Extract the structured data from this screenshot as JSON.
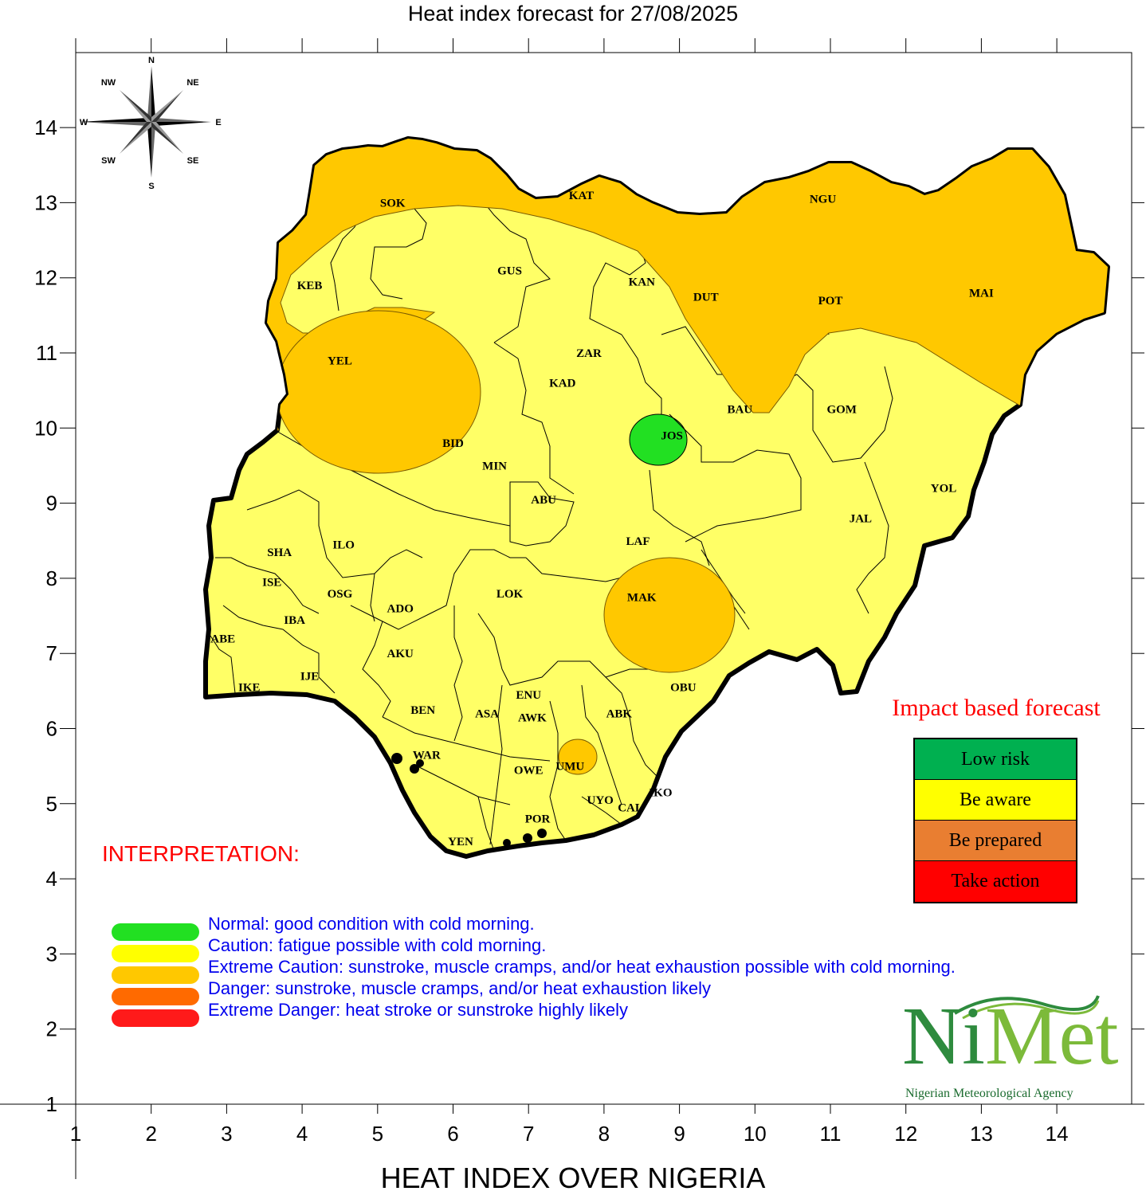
{
  "title": "Heat index forecast for 27/08/2025",
  "x_axis_title": "HEAT INDEX OVER NIGERIA",
  "axes": {
    "x_ticks": [
      "1",
      "2",
      "3",
      "4",
      "5",
      "6",
      "7",
      "8",
      "9",
      "10",
      "11",
      "12",
      "13",
      "14"
    ],
    "y_ticks": [
      "1",
      "2",
      "3",
      "4",
      "5",
      "6",
      "7",
      "8",
      "9",
      "10",
      "11",
      "12",
      "13",
      "14"
    ]
  },
  "compass": {
    "n": "N",
    "s": "S",
    "e": "E",
    "w": "W",
    "ne": "NE",
    "nw": "NW",
    "se": "SE",
    "sw": "SW"
  },
  "states": [
    {
      "code": "SOK",
      "lon": 5.2,
      "lat": 13.0
    },
    {
      "code": "KAT",
      "lon": 7.7,
      "lat": 13.1
    },
    {
      "code": "NGU",
      "lon": 10.9,
      "lat": 13.05
    },
    {
      "code": "KEB",
      "lon": 4.1,
      "lat": 11.9
    },
    {
      "code": "GUS",
      "lon": 6.75,
      "lat": 12.1
    },
    {
      "code": "KAN",
      "lon": 8.5,
      "lat": 11.95
    },
    {
      "code": "DUT",
      "lon": 9.35,
      "lat": 11.75
    },
    {
      "code": "POT",
      "lon": 11.0,
      "lat": 11.7
    },
    {
      "code": "MAI",
      "lon": 13.0,
      "lat": 11.8
    },
    {
      "code": "ZAR",
      "lon": 7.8,
      "lat": 11.0
    },
    {
      "code": "YEL",
      "lon": 4.5,
      "lat": 10.9
    },
    {
      "code": "KAD",
      "lon": 7.45,
      "lat": 10.6
    },
    {
      "code": "BAU",
      "lon": 9.8,
      "lat": 10.25
    },
    {
      "code": "GOM",
      "lon": 11.15,
      "lat": 10.25
    },
    {
      "code": "JOS",
      "lon": 8.9,
      "lat": 9.9
    },
    {
      "code": "BID",
      "lon": 6.0,
      "lat": 9.8
    },
    {
      "code": "MIN",
      "lon": 6.55,
      "lat": 9.5
    },
    {
      "code": "ABU",
      "lon": 7.2,
      "lat": 9.05
    },
    {
      "code": "YOL",
      "lon": 12.5,
      "lat": 9.2
    },
    {
      "code": "JAL",
      "lon": 11.4,
      "lat": 8.8
    },
    {
      "code": "LAF",
      "lon": 8.45,
      "lat": 8.5
    },
    {
      "code": "SHA",
      "lon": 3.7,
      "lat": 8.35
    },
    {
      "code": "ILO",
      "lon": 4.55,
      "lat": 8.45
    },
    {
      "code": "ISE",
      "lon": 3.6,
      "lat": 7.95
    },
    {
      "code": "OSG",
      "lon": 4.5,
      "lat": 7.8
    },
    {
      "code": "LOK",
      "lon": 6.75,
      "lat": 7.8
    },
    {
      "code": "MAK",
      "lon": 8.5,
      "lat": 7.75
    },
    {
      "code": "ADO",
      "lon": 5.3,
      "lat": 7.6
    },
    {
      "code": "IBA",
      "lon": 3.9,
      "lat": 7.45
    },
    {
      "code": "ABE",
      "lon": 2.95,
      "lat": 7.2
    },
    {
      "code": "AKU",
      "lon": 5.3,
      "lat": 7.0
    },
    {
      "code": "IJE",
      "lon": 4.1,
      "lat": 6.7
    },
    {
      "code": "IKE",
      "lon": 3.3,
      "lat": 6.55
    },
    {
      "code": "OBU",
      "lon": 9.05,
      "lat": 6.55
    },
    {
      "code": "ENU",
      "lon": 7.0,
      "lat": 6.45
    },
    {
      "code": "BEN",
      "lon": 5.6,
      "lat": 6.25
    },
    {
      "code": "ASA",
      "lon": 6.45,
      "lat": 6.2
    },
    {
      "code": "AWK",
      "lon": 7.05,
      "lat": 6.15
    },
    {
      "code": "ABK",
      "lon": 8.2,
      "lat": 6.2
    },
    {
      "code": "WAR",
      "lon": 5.65,
      "lat": 5.65
    },
    {
      "code": "OWE",
      "lon": 7.0,
      "lat": 5.45
    },
    {
      "code": "UMU",
      "lon": 7.55,
      "lat": 5.5
    },
    {
      "code": "IKO",
      "lon": 8.75,
      "lat": 5.15
    },
    {
      "code": "UYO",
      "lon": 7.95,
      "lat": 5.05
    },
    {
      "code": "CAL",
      "lon": 8.35,
      "lat": 4.95
    },
    {
      "code": "POR",
      "lon": 7.12,
      "lat": 4.8
    },
    {
      "code": "YEN",
      "lon": 6.1,
      "lat": 4.5
    }
  ],
  "interpretation": {
    "title": "INTERPRETATION:",
    "items": [
      {
        "color": "#22e022",
        "text": "Normal: good condition with cold morning."
      },
      {
        "color": "#ffff00",
        "text": "Caution: fatigue possible  with cold morning."
      },
      {
        "color": "#ffc800",
        "text": "Extreme Caution: sunstroke, muscle cramps, and/or heat exhaustion possible  with cold morning."
      },
      {
        "color": "#ff6a00",
        "text": "Danger: sunstroke, muscle cramps, and/or heat exhaustion likely"
      },
      {
        "color": "#ff1a1a",
        "text": "Extreme Danger: heat stroke or sunstroke highly likely"
      }
    ]
  },
  "impact_forecast": {
    "title": "Impact based forecast",
    "levels": [
      {
        "label": "Low risk",
        "color": "#00b050"
      },
      {
        "label": "Be aware",
        "color": "#ffff00"
      },
      {
        "label": "Be prepared",
        "color": "#e97e31"
      },
      {
        "label": "Take action",
        "color": "#ff0000"
      }
    ]
  },
  "logo": {
    "brand_ni": "Ni",
    "brand_met": "Met",
    "subtitle": "Nigerian Meteorological Agency"
  },
  "zone_colors": {
    "caution": "#ffff66",
    "extreme_caution": "#ffc800",
    "normal": "#22e022"
  }
}
